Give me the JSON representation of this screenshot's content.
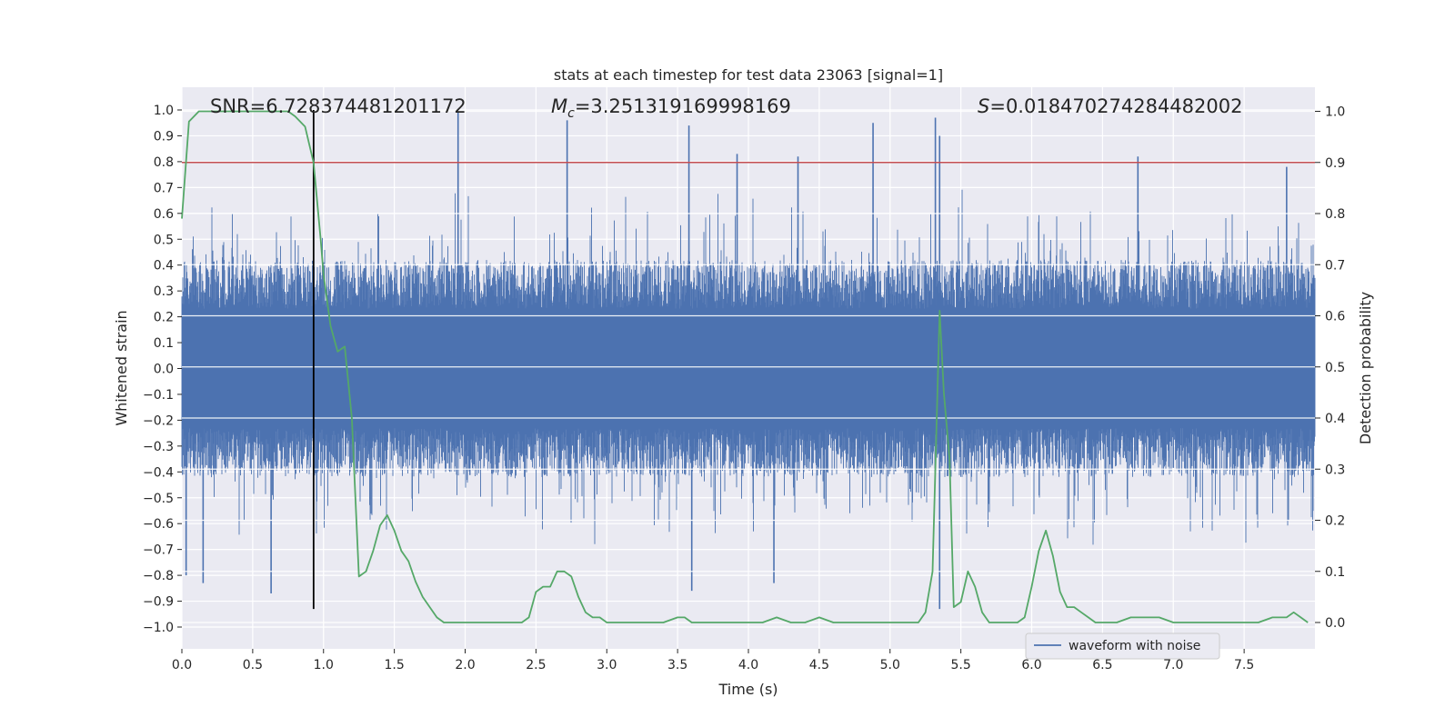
{
  "chart_data": {
    "type": "line",
    "title": "stats at each timestep for test data 23063 [signal=1]",
    "xlabel": "Time (s)",
    "ylabel_left": "Whitened strain",
    "ylabel_right": "Detection probability",
    "xlim": [
      0.0,
      8.0
    ],
    "ylim_left": [
      -1.02,
      1.1
    ],
    "ylim_right": [
      -0.05,
      1.05
    ],
    "x_ticks": [
      "0.0",
      "0.5",
      "1.0",
      "1.5",
      "2.0",
      "2.5",
      "3.0",
      "3.5",
      "4.0",
      "4.5",
      "5.0",
      "5.5",
      "6.0",
      "6.5",
      "7.0",
      "7.5"
    ],
    "y_ticks_left": [
      "1.0",
      "0.9",
      "0.8",
      "0.7",
      "0.6",
      "0.5",
      "0.4",
      "0.3",
      "0.2",
      "0.1",
      "0.0",
      "−0.1",
      "−0.2",
      "−0.3",
      "−0.4",
      "−0.5",
      "−0.6",
      "−0.7",
      "−0.8",
      "−0.9",
      "−1.0"
    ],
    "y_ticks_right": [
      "1.0",
      "0.9",
      "0.8",
      "0.7",
      "0.6",
      "0.5",
      "0.4",
      "0.3",
      "0.2",
      "0.1",
      "0.0"
    ],
    "grid": true,
    "legend_position": "bottom-right",
    "annotations": {
      "snr": "SNR=6.728374481201172",
      "mc_symbol": "M",
      "mc_sub": "c",
      "mc_value": "=3.251319169998169",
      "s_symbol": "S",
      "s_value": "=0.018470274284482002"
    },
    "threshold_line": {
      "axis": "right",
      "y": 0.9,
      "color": "#c44e52"
    },
    "vertical_marker": {
      "x": 0.93,
      "y_range_left": [
        -0.93,
        1.0
      ],
      "color": "#000000"
    },
    "series": [
      {
        "name": "waveform with noise",
        "axis": "left",
        "style": "dense-noise",
        "color": "#4c72b0",
        "envelope_typical": [
          -0.42,
          0.42
        ],
        "spikes": [
          {
            "x": 1.95,
            "y": 0.99
          },
          {
            "x": 2.72,
            "y": 0.96
          },
          {
            "x": 3.58,
            "y": 0.94
          },
          {
            "x": 4.88,
            "y": 0.95
          },
          {
            "x": 5.32,
            "y": 0.97
          },
          {
            "x": 5.35,
            "y": -0.93
          },
          {
            "x": 5.35,
            "y": 0.9
          },
          {
            "x": 0.63,
            "y": -0.87
          },
          {
            "x": 0.15,
            "y": -0.83
          },
          {
            "x": 0.03,
            "y": -0.8
          },
          {
            "x": 3.92,
            "y": 0.83
          },
          {
            "x": 4.35,
            "y": 0.82
          },
          {
            "x": 6.75,
            "y": 0.82
          },
          {
            "x": 7.8,
            "y": 0.78
          },
          {
            "x": 4.18,
            "y": -0.83
          },
          {
            "x": 3.6,
            "y": -0.86
          }
        ]
      },
      {
        "name": "",
        "axis": "right",
        "style": "line",
        "color": "#55a868",
        "x": [
          0.0,
          0.05,
          0.12,
          0.2,
          0.3,
          0.4,
          0.5,
          0.6,
          0.7,
          0.75,
          0.8,
          0.87,
          0.93,
          0.98,
          1.0,
          1.05,
          1.1,
          1.15,
          1.2,
          1.25,
          1.3,
          1.35,
          1.4,
          1.45,
          1.5,
          1.55,
          1.6,
          1.65,
          1.7,
          1.75,
          1.8,
          1.85,
          1.9,
          1.95,
          2.0,
          2.1,
          2.2,
          2.3,
          2.4,
          2.45,
          2.5,
          2.55,
          2.6,
          2.65,
          2.7,
          2.75,
          2.8,
          2.85,
          2.9,
          2.95,
          3.0,
          3.1,
          3.2,
          3.3,
          3.4,
          3.5,
          3.55,
          3.6,
          3.7,
          3.8,
          3.9,
          4.0,
          4.1,
          4.2,
          4.3,
          4.4,
          4.5,
          4.6,
          4.7,
          4.8,
          4.9,
          5.0,
          5.1,
          5.2,
          5.25,
          5.3,
          5.35,
          5.38,
          5.42,
          5.45,
          5.5,
          5.55,
          5.6,
          5.65,
          5.7,
          5.75,
          5.8,
          5.85,
          5.9,
          5.95,
          6.0,
          6.05,
          6.1,
          6.15,
          6.2,
          6.25,
          6.3,
          6.35,
          6.4,
          6.45,
          6.5,
          6.6,
          6.7,
          6.8,
          6.9,
          7.0,
          7.1,
          7.2,
          7.3,
          7.4,
          7.5,
          7.6,
          7.7,
          7.8,
          7.85,
          7.9,
          7.95
        ],
        "y": [
          0.79,
          0.98,
          1.0,
          1.0,
          1.0,
          1.0,
          1.0,
          1.0,
          1.0,
          1.0,
          0.99,
          0.97,
          0.9,
          0.75,
          0.68,
          0.58,
          0.53,
          0.54,
          0.4,
          0.09,
          0.1,
          0.14,
          0.19,
          0.21,
          0.18,
          0.14,
          0.12,
          0.08,
          0.05,
          0.03,
          0.01,
          0.0,
          0.0,
          0.0,
          0.0,
          0.0,
          0.0,
          0.0,
          0.0,
          0.01,
          0.06,
          0.07,
          0.07,
          0.1,
          0.1,
          0.09,
          0.05,
          0.02,
          0.01,
          0.01,
          0.0,
          0.0,
          0.0,
          0.0,
          0.0,
          0.01,
          0.01,
          0.0,
          0.0,
          0.0,
          0.0,
          0.0,
          0.0,
          0.01,
          0.0,
          0.0,
          0.01,
          0.0,
          0.0,
          0.0,
          0.0,
          0.0,
          0.0,
          0.0,
          0.02,
          0.1,
          0.61,
          0.45,
          0.32,
          0.03,
          0.04,
          0.1,
          0.07,
          0.02,
          0.0,
          0.0,
          0.0,
          0.0,
          0.0,
          0.01,
          0.07,
          0.14,
          0.18,
          0.13,
          0.06,
          0.03,
          0.03,
          0.02,
          0.01,
          0.0,
          0.0,
          0.0,
          0.01,
          0.01,
          0.01,
          0.0,
          0.0,
          0.0,
          0.0,
          0.0,
          0.0,
          0.0,
          0.01,
          0.01,
          0.02,
          0.01,
          0.0
        ]
      }
    ]
  }
}
